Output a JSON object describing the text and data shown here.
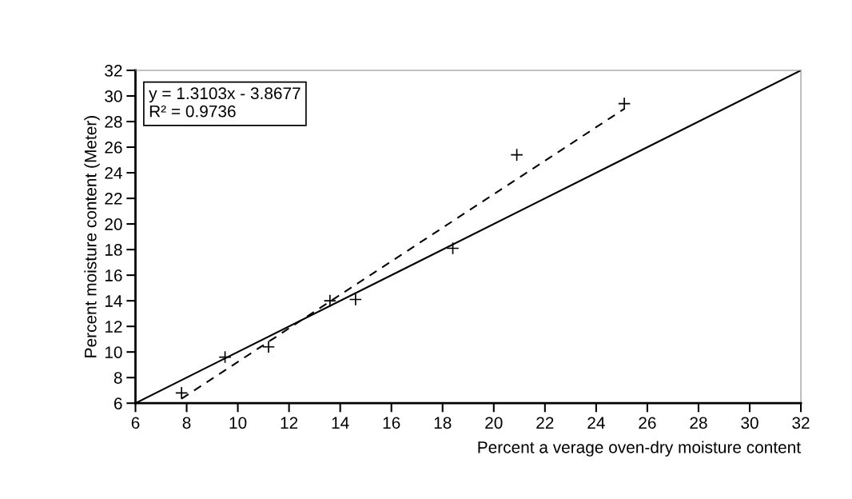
{
  "chart_data": {
    "type": "scatter",
    "xlabel": "Percent a verage oven-dry moisture content",
    "ylabel": "Percent moisture content (Meter)",
    "series": [
      {
        "color": "#000000",
        "marker": "cross",
        "x": [
          7.8,
          9.5,
          11.2,
          13.6,
          14.6,
          18.4,
          20.9,
          25.1
        ],
        "values": [
          6.8,
          9.6,
          10.4,
          14.0,
          14.1,
          18.1,
          25.4,
          29.4
        ]
      },
      {
        "type": "line",
        "color": "#000000",
        "line_style": "dashed",
        "x": [
          7.8,
          25.1
        ],
        "values": [
          6.35,
          29.0
        ]
      },
      {
        "type": "line",
        "color": "#000000",
        "line_style": "solid",
        "x": [
          6,
          32
        ],
        "values": [
          6,
          32
        ]
      }
    ],
    "annotations": [
      "y = 1.3103x - 3.8677",
      "R² = 0.9736"
    ],
    "xlim": [
      6,
      32
    ],
    "ylim": [
      6,
      32
    ],
    "xticks": [
      6,
      8,
      10,
      12,
      14,
      16,
      18,
      20,
      22,
      24,
      26,
      28,
      30,
      32
    ],
    "yticks": [
      6,
      8,
      10,
      12,
      14,
      16,
      18,
      20,
      22,
      24,
      26,
      28,
      30,
      32
    ],
    "grid": false,
    "legend": false
  }
}
